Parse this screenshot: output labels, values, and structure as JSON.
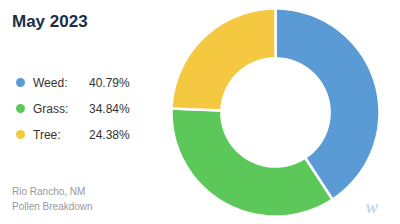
{
  "chart_data": {
    "type": "donut",
    "title": "May 2023",
    "subtitle": "Rio Rancho, NM\nPollen Breakdown",
    "categories": [
      "Weed:",
      "Grass:",
      "Tree:"
    ],
    "values": [
      40.79,
      34.84,
      24.38
    ],
    "value_labels": [
      "40.79%",
      "34.84%",
      "24.38%"
    ],
    "colors": [
      "#5B9BD5",
      "#5DC85A",
      "#F5C842"
    ],
    "annotations": [
      "w"
    ]
  }
}
